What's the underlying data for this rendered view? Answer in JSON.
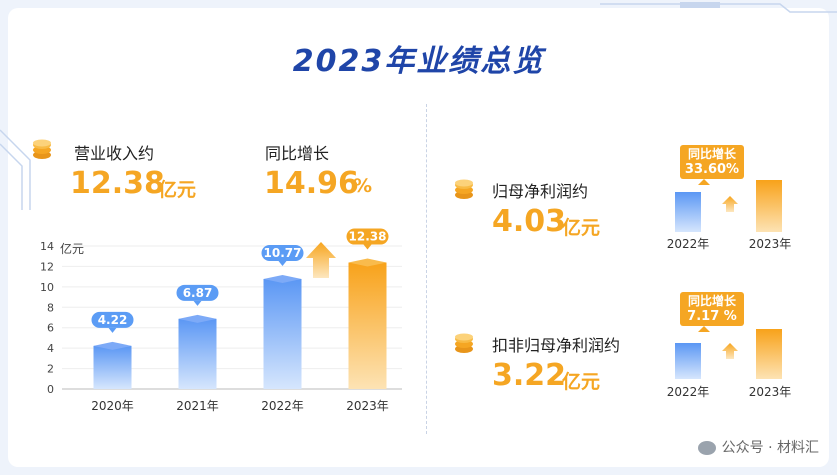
{
  "title": "2023年业绩总览",
  "revenue": {
    "label": "营业收入约",
    "value": "12.38",
    "unit": "亿元"
  },
  "yoy": {
    "label": "同比增长",
    "value": "14.96",
    "unit": "%"
  },
  "net_profit": {
    "label": "归母净利润约",
    "value": "4.03",
    "unit": "亿元",
    "callout_label": "同比增长",
    "callout_value": "33.60%",
    "years": [
      "2022年",
      "2023年"
    ]
  },
  "deducted_profit": {
    "label": "扣非归母净利润约",
    "value": "3.22",
    "unit": "亿元",
    "callout_label": "同比增长",
    "callout_value": "7.17 %",
    "years": [
      "2022年",
      "2023年"
    ]
  },
  "watermark": "公众号 · 材料汇",
  "colors": {
    "blue": "#5b9cf5",
    "orange": "#f5a623",
    "title": "#1f45a8"
  },
  "chart_data": {
    "type": "bar",
    "categories": [
      "2020年",
      "2021年",
      "2022年",
      "2023年"
    ],
    "values": [
      4.22,
      6.87,
      10.77,
      12.38
    ],
    "value_labels": [
      "4.22",
      "6.87",
      "10.77",
      "12.38"
    ],
    "ylabel": "亿元",
    "ylim": [
      0,
      14
    ],
    "yticks": [
      "0",
      "2",
      "4",
      "6",
      "8",
      "10",
      "12",
      "14"
    ],
    "highlight_index": 3
  }
}
